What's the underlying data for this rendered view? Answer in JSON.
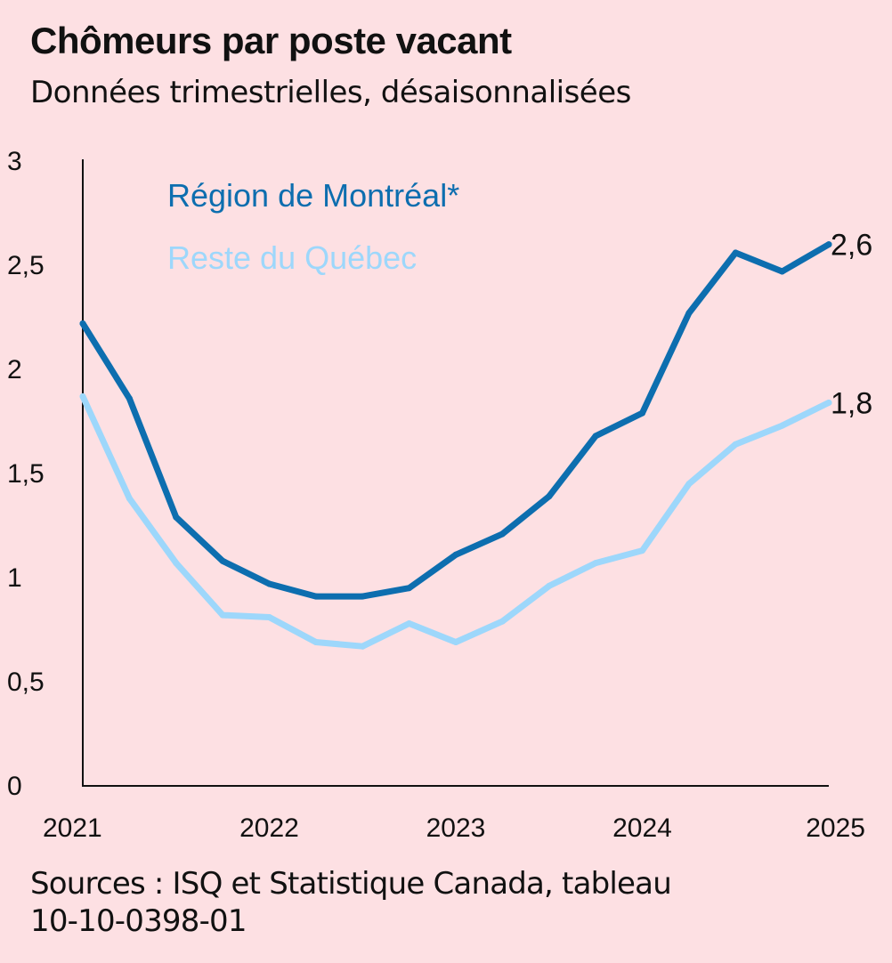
{
  "title": "Chômeurs par poste vacant",
  "subtitle": "Données trimestrielles, désaisonnalisées",
  "source": "Sources : ISQ et Statistique Canada, tableau 10-10-0398-01",
  "chart_data": {
    "type": "line",
    "title": "Chômeurs par poste vacant",
    "subtitle": "Données trimestrielles, désaisonnalisées",
    "xlabel": "",
    "ylabel": "",
    "x": [
      2021.0,
      2021.25,
      2021.5,
      2021.75,
      2022.0,
      2022.25,
      2022.5,
      2022.75,
      2023.0,
      2023.25,
      2023.5,
      2023.75,
      2024.0,
      2024.25,
      2024.5,
      2024.75,
      2025.0
    ],
    "x_ticks": [
      "2021",
      "2022",
      "2023",
      "2024",
      "2025"
    ],
    "x_tick_values": [
      2021,
      2022,
      2023,
      2024,
      2025
    ],
    "y_ticks": [
      "0",
      "0,5",
      "1",
      "1,5",
      "2",
      "2,5",
      "3"
    ],
    "y_tick_values": [
      0,
      0.5,
      1,
      1.5,
      2,
      2.5,
      3
    ],
    "xlim": [
      2021,
      2025
    ],
    "ylim": [
      0,
      3
    ],
    "grid": false,
    "legend_position": "top-left",
    "series": [
      {
        "name": "Région de Montréal*",
        "color": "#0d6eaf",
        "values": [
          2.22,
          1.86,
          1.29,
          1.08,
          0.97,
          0.91,
          0.91,
          0.95,
          1.11,
          1.21,
          1.39,
          1.68,
          1.79,
          2.27,
          2.56,
          2.47,
          2.6
        ],
        "end_label": "2,6"
      },
      {
        "name": "Reste du Québec",
        "color": "#9dd7fb",
        "values": [
          1.87,
          1.38,
          1.07,
          0.82,
          0.81,
          0.69,
          0.67,
          0.78,
          0.69,
          0.79,
          0.96,
          1.07,
          1.13,
          1.45,
          1.64,
          1.73,
          1.84
        ],
        "end_label": "1,8"
      }
    ]
  }
}
